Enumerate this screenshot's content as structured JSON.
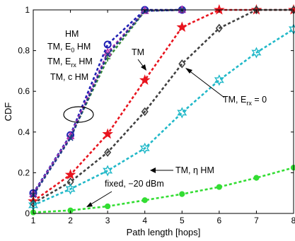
{
  "chart_data": {
    "type": "line",
    "xlabel": "Path length [hops]",
    "ylabel": "CDF",
    "xlim": [
      1,
      8
    ],
    "ylim": [
      0,
      1
    ],
    "x_ticks": [
      "1",
      "2",
      "3",
      "4",
      "5",
      "6",
      "7",
      "8"
    ],
    "y_ticks": [
      "0",
      "0.2",
      "0.4",
      "0.6",
      "0.8",
      "1"
    ],
    "grid": false,
    "series": [
      {
        "name": "HM",
        "color": "#1f1fb4",
        "marker": "circle",
        "x": [
          1,
          2,
          3,
          4,
          5
        ],
        "y": [
          0.1,
          0.385,
          0.83,
          1.0,
          1.0
        ]
      },
      {
        "name": "TM, E0 HM",
        "color": "#3a8a3a",
        "marker": "plus",
        "x": [
          1,
          2,
          3,
          4,
          5
        ],
        "y": [
          0.095,
          0.375,
          0.76,
          0.995,
          1.0
        ]
      },
      {
        "name": "TM, Erx HM",
        "color": "#b030b0",
        "marker": "triangle",
        "x": [
          1,
          2,
          3,
          4,
          5
        ],
        "y": [
          0.095,
          0.38,
          0.79,
          0.995,
          1.0
        ]
      },
      {
        "name": "TM, c HM",
        "color": "#1e3a8a",
        "marker": "x",
        "x": [
          1,
          2,
          3,
          4,
          5
        ],
        "y": [
          0.09,
          0.37,
          0.78,
          0.995,
          1.0
        ]
      },
      {
        "name": "TM",
        "color": "#e8141e",
        "marker": "star",
        "x": [
          1,
          2,
          3,
          4,
          5,
          6,
          7,
          8
        ],
        "y": [
          0.06,
          0.19,
          0.39,
          0.655,
          0.915,
          1.0,
          1.0,
          1.0
        ]
      },
      {
        "name": "TM, Erx = 0",
        "color": "#404040",
        "marker": "diamond",
        "x": [
          1,
          2,
          3,
          4,
          5,
          6,
          7,
          8
        ],
        "y": [
          0.05,
          0.155,
          0.3,
          0.5,
          0.735,
          0.91,
          1.0,
          1.0
        ]
      },
      {
        "name": "TM, η HM",
        "color": "#20b8c8",
        "marker": "hexagram",
        "x": [
          1,
          2,
          3,
          4,
          5,
          6,
          7,
          8
        ],
        "y": [
          0.04,
          0.12,
          0.21,
          0.32,
          0.495,
          0.655,
          0.79,
          0.905
        ]
      },
      {
        "name": "fixed, −20 dBm",
        "color": "#33dd33",
        "marker": "dot",
        "x": [
          1,
          2,
          3,
          4,
          5,
          6,
          7,
          8
        ],
        "y": [
          0.005,
          0.015,
          0.035,
          0.065,
          0.095,
          0.13,
          0.175,
          0.225
        ]
      }
    ]
  },
  "annotations": {
    "hm": "HM",
    "tm_e0": {
      "main": "TM, E",
      "sub": "0",
      "tail": " HM"
    },
    "tm_erx": {
      "main": "TM, E",
      "sub": "rx",
      "tail": " HM"
    },
    "tm_c": "TM, c HM",
    "tm": "TM",
    "tm_erx0": {
      "main": "TM, E",
      "sub": "rx",
      "tail": " = 0"
    },
    "tm_eta": "TM, η HM",
    "fixed": "fixed, −20 dBm"
  }
}
